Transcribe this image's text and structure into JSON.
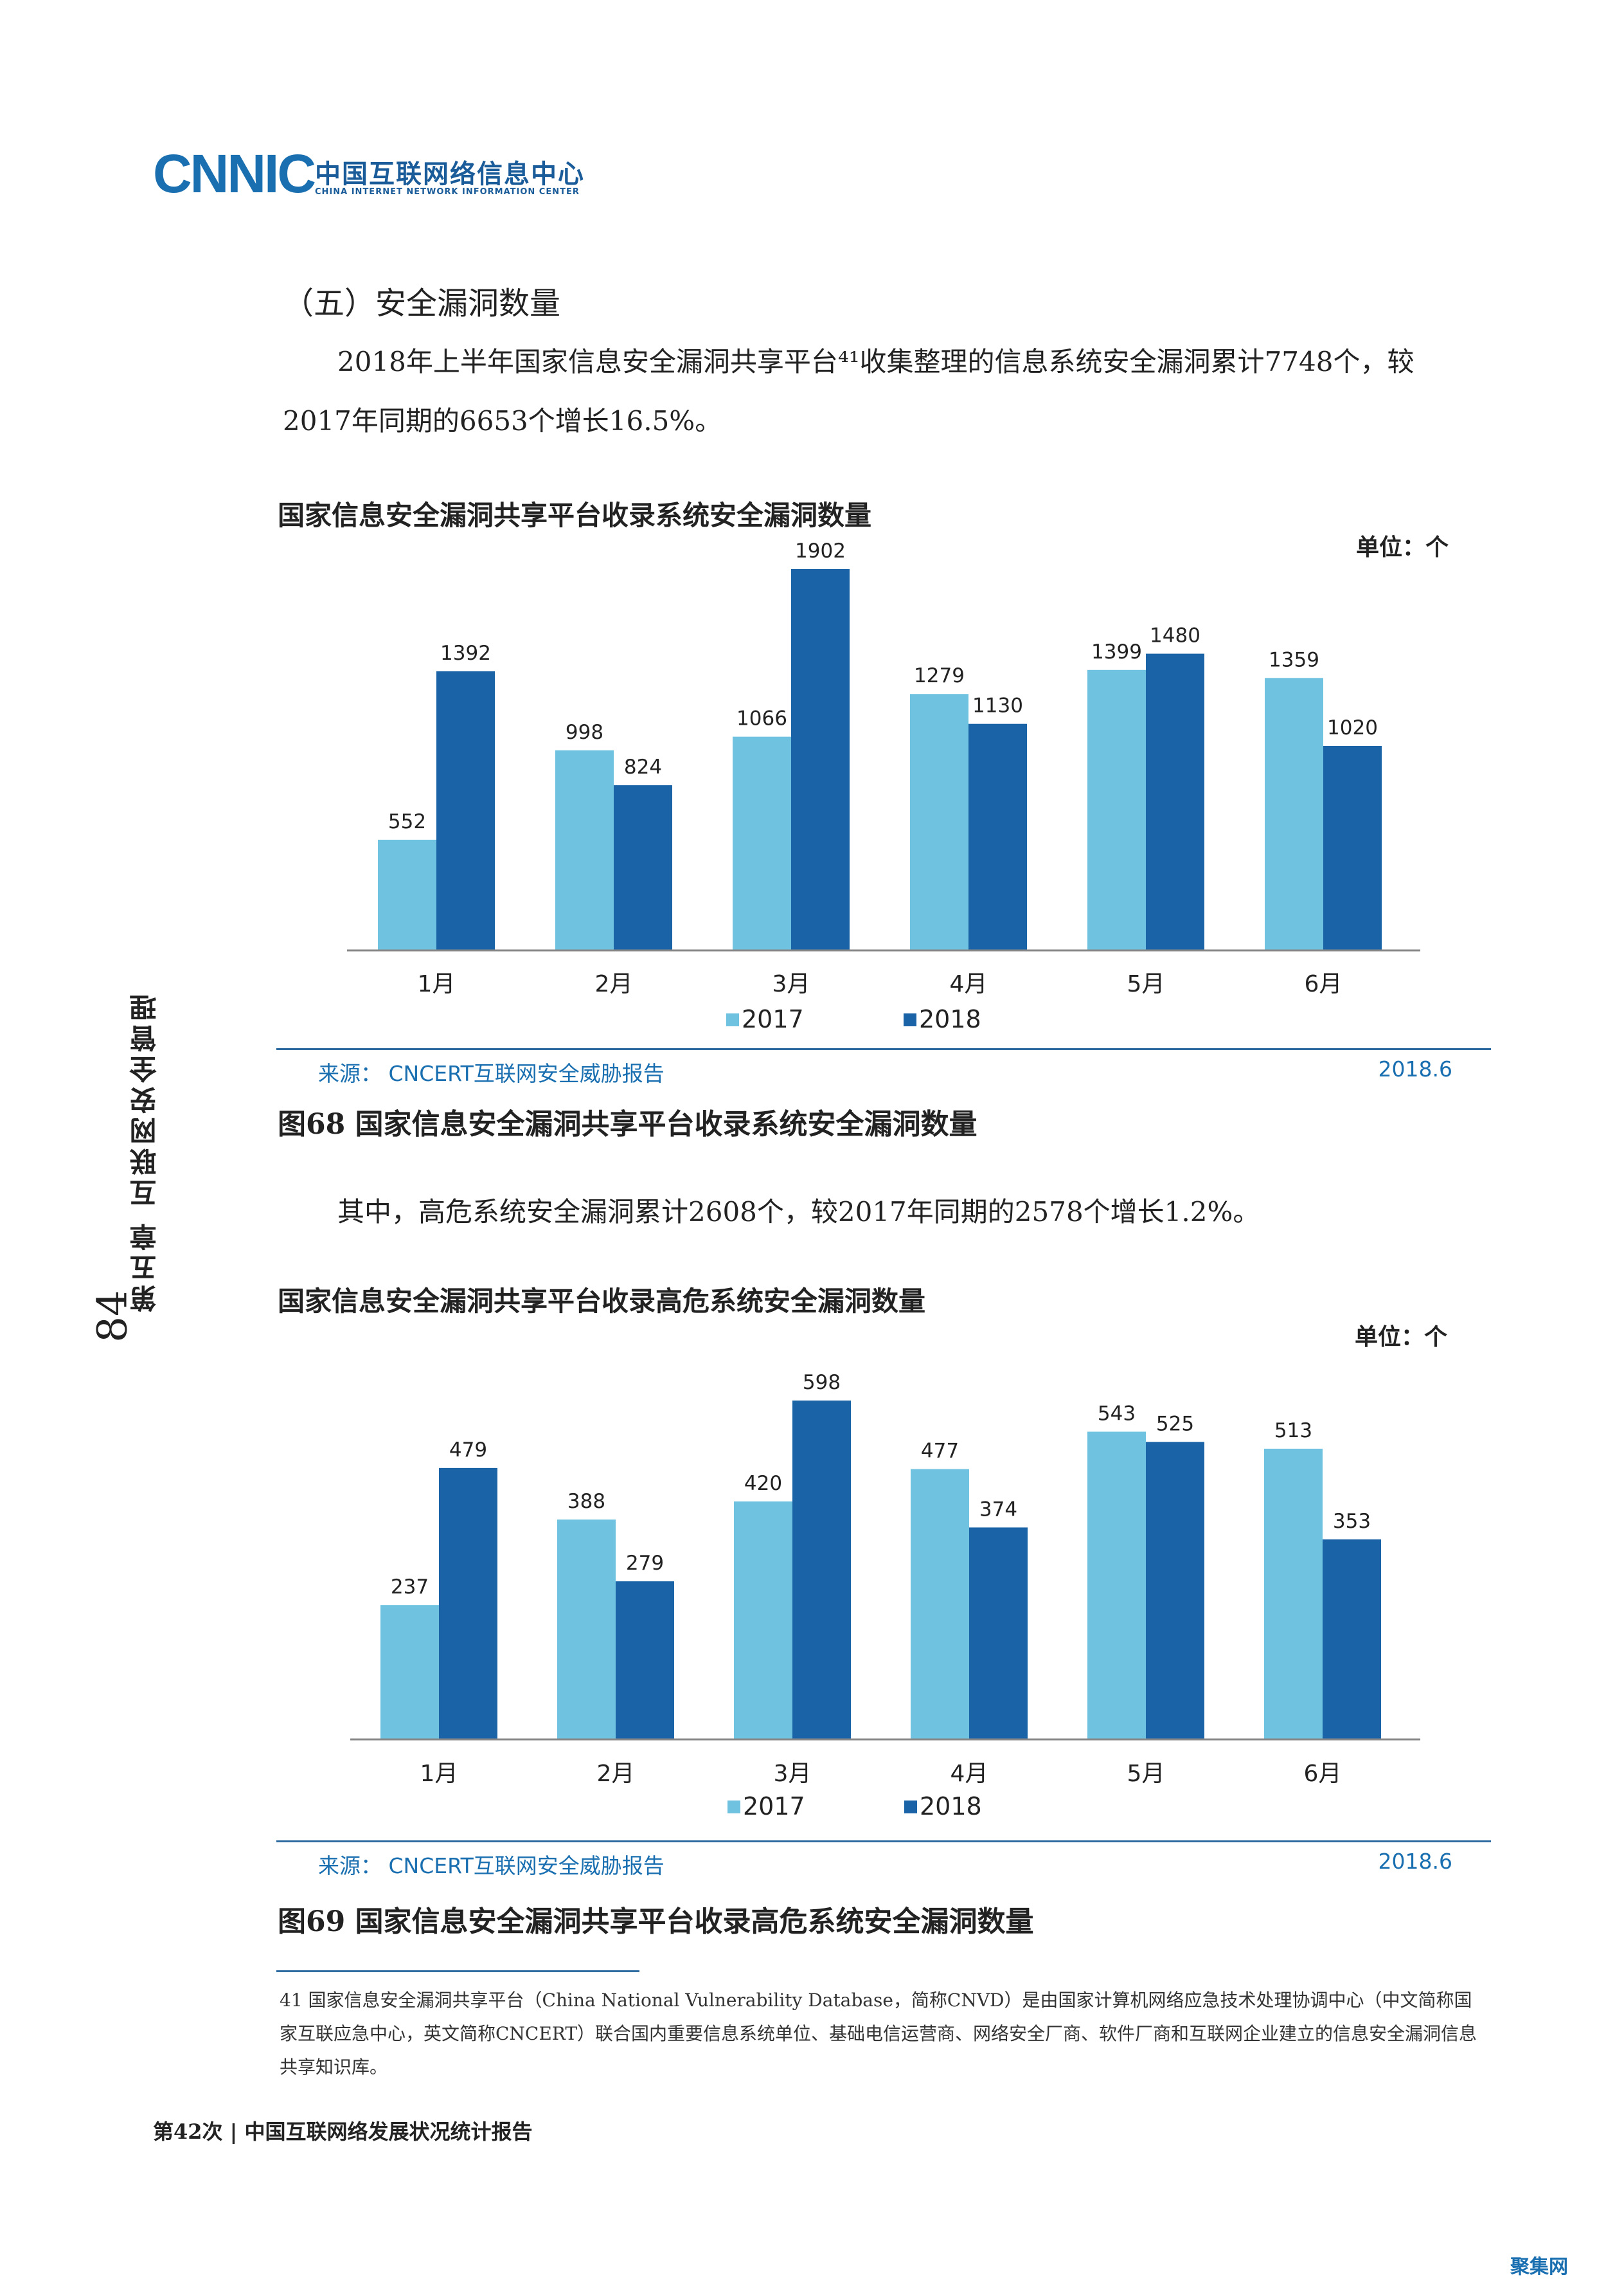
{
  "header": {
    "logo_text": "CNNIC",
    "org_cn": "中国互联网络信息中心",
    "org_en": "CHINA INTERNET NETWORK INFORMATION CENTER"
  },
  "section": {
    "heading": "（五）安全漏洞数量",
    "para1_line1": "2018年上半年国家信息安全漏洞共享平台⁴¹收集整理的信息系统安全漏洞累计7748个，较",
    "para1_line2": "2017年同期的6653个增长16.5%。",
    "para2": "其中，高危系统安全漏洞累计2608个，较2017年同期的2578个增长1.2%。"
  },
  "charts": {
    "colors": {
      "s2017": "#6fc3e0",
      "s2018": "#1a63a6",
      "axis": "#888888"
    },
    "chart1": {
      "title": "国家信息安全漏洞共享平台收录系统安全漏洞数量",
      "unit": "单位：个",
      "source": "来源：  CNCERT互联网安全威胁报告",
      "date": "2018.6",
      "caption": "图68  国家信息安全漏洞共享平台收录系统安全漏洞数量"
    },
    "chart2": {
      "title": "国家信息安全漏洞共享平台收录高危系统安全漏洞数量",
      "unit": "单位：个",
      "source": "来源：  CNCERT互联网安全威胁报告",
      "date": "2018.6",
      "caption": "图69  国家信息安全漏洞共享平台收录高危系统安全漏洞数量"
    }
  },
  "chart_data": [
    {
      "type": "bar",
      "categories": [
        "1月",
        "2月",
        "3月",
        "4月",
        "5月",
        "6月"
      ],
      "series": [
        {
          "name": "2017",
          "values": [
            552,
            998,
            1066,
            1279,
            1399,
            1359
          ]
        },
        {
          "name": "2018",
          "values": [
            1392,
            824,
            1902,
            1130,
            1480,
            1020
          ]
        }
      ],
      "ylim": [
        0,
        1902
      ],
      "legend": "bottom"
    },
    {
      "type": "bar",
      "categories": [
        "1月",
        "2月",
        "3月",
        "4月",
        "5月",
        "6月"
      ],
      "series": [
        {
          "name": "2017",
          "values": [
            237,
            388,
            420,
            477,
            543,
            513
          ]
        },
        {
          "name": "2018",
          "values": [
            479,
            279,
            598,
            374,
            525,
            353
          ]
        }
      ],
      "ylim": [
        0,
        598
      ],
      "legend": "bottom"
    }
  ],
  "footnote": {
    "text": "41 国家信息安全漏洞共享平台（China National Vulnerability Database，简称CNVD）是由国家计算机网络应急技术处理协调中心（中文简称国家互联应急中心，英文简称CNCERT）联合国内重要信息系统单位、基础电信运营商、网络安全厂商、软件厂商和互联网企业建立的信息安全漏洞信息共享知识库。"
  },
  "page": {
    "footer": "第42次 | 中国互联网络发展状况统计报告",
    "side_chapter": "第五章  互联网安全管理",
    "page_number": "84",
    "watermark": "聚集网"
  }
}
